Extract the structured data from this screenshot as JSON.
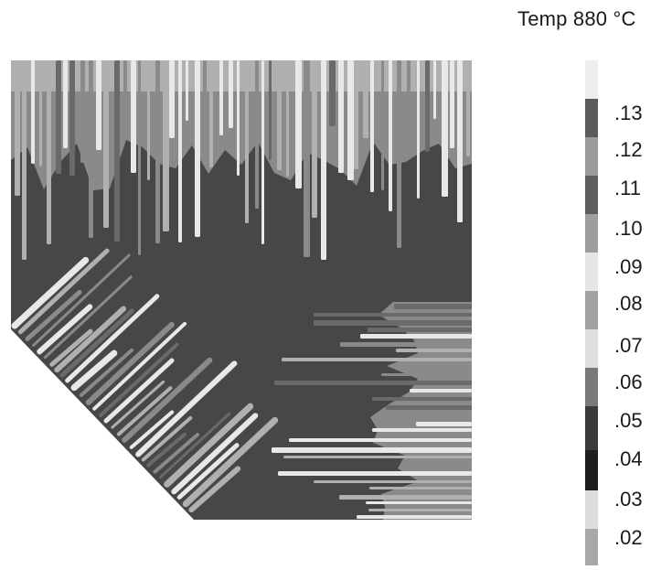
{
  "header": {
    "title": "Temp 880 °C"
  },
  "legend": {
    "labels": [
      ".13",
      ".12",
      ".11",
      ".10",
      ".09",
      ".08",
      ".07",
      ".06",
      ".05",
      ".04",
      ".03",
      ".02"
    ],
    "colors": [
      "#eeeeee",
      "#5c5c5c",
      "#9c9c9c",
      "#5e5e5e",
      "#9e9e9e",
      "#e6e6e6",
      "#a2a2a2",
      "#dedede",
      "#7a7a7a",
      "#3a3a3a",
      "#1e1e1e",
      "#dcdcdc",
      "#a8a8a8"
    ]
  },
  "grain_palette": {
    "matrix": "#474747",
    "needle_light": "#e8e8e8",
    "needle_mid": "#b0b0b0",
    "needle_grey": "#8a8a8a",
    "needle_dark": "#6a6a6a"
  }
}
